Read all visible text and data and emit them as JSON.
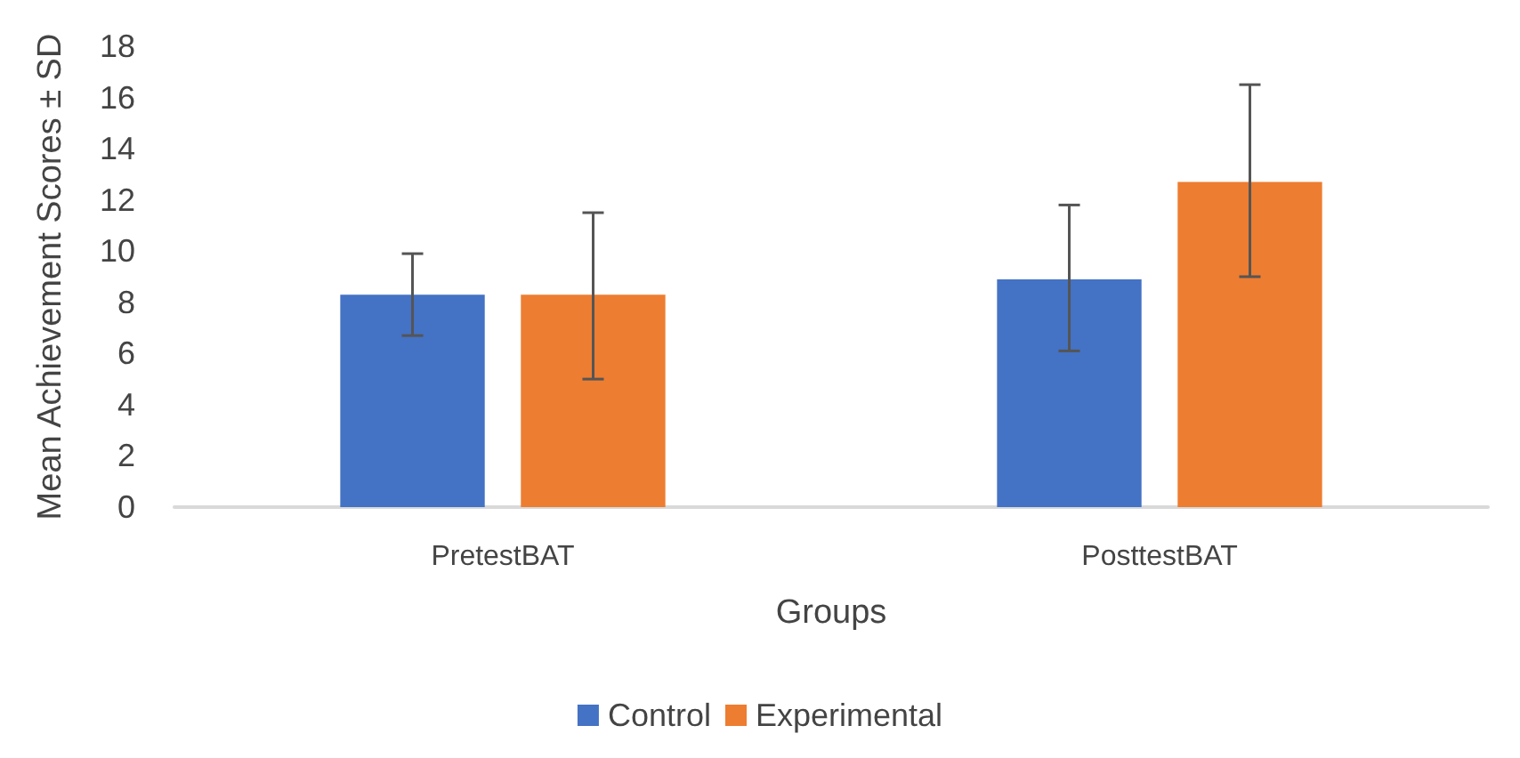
{
  "chart_data": {
    "type": "bar",
    "xlabel": "Groups",
    "ylabel": "Mean Achievement Scores ± SD",
    "categories": [
      "PretestBAT",
      "PosttestBAT"
    ],
    "series": [
      {
        "name": "Control",
        "color": "#4472c4",
        "values": [
          8.3,
          8.9
        ],
        "errors": [
          [
            6.7,
            9.9
          ],
          [
            6.1,
            11.8
          ]
        ]
      },
      {
        "name": "Experimental",
        "color": "#ed7d31",
        "values": [
          8.3,
          12.7
        ],
        "errors": [
          [
            5.0,
            11.5
          ],
          [
            9.0,
            16.5
          ]
        ]
      }
    ],
    "ylim": [
      0,
      18
    ],
    "yticks": [
      0,
      2,
      4,
      6,
      8,
      10,
      12,
      14,
      16,
      18
    ],
    "grid": false,
    "legend": "bottom"
  }
}
